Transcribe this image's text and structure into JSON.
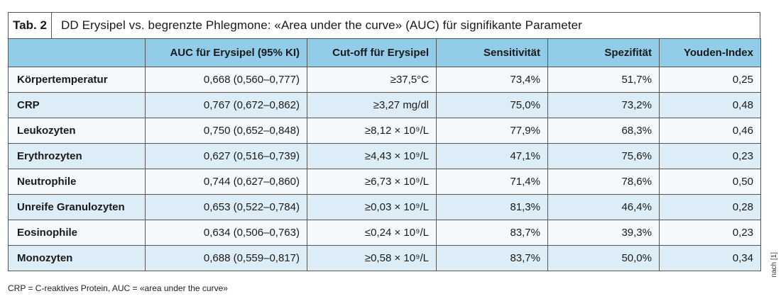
{
  "table": {
    "tab_label": "Tab. 2",
    "title": "DD Erysipel vs. begrenzte Phlegmone: «Area under the curve» (AUC) für signifikante Parameter",
    "headers": [
      "",
      "AUC für Erysipel (95% KI)",
      "Cut-off für Erysipel",
      "Sensitivität",
      "Spezifität",
      "Youden-Index"
    ],
    "rows": [
      {
        "param": "Körpertemperatur",
        "auc": "0,668 (0,560–0,777)",
        "cutoff": "≥37,5°C",
        "sens": "73,4%",
        "spez": "51,7%",
        "youden": "0,25"
      },
      {
        "param": "CRP",
        "auc": "0,767 (0,672–0,862)",
        "cutoff": "≥3,27 mg/dl",
        "sens": "75,0%",
        "spez": "73,2%",
        "youden": "0,48"
      },
      {
        "param": "Leukozyten",
        "auc": "0,750 (0,652–0,848)",
        "cutoff": "≥8,12 × 10⁹/L",
        "sens": "77,9%",
        "spez": "68,3%",
        "youden": "0,46"
      },
      {
        "param": "Erythrozyten",
        "auc": "0,627 (0,516–0,739)",
        "cutoff": "≥4,43 × 10⁹/L",
        "sens": "47,1%",
        "spez": "75,6%",
        "youden": "0,23"
      },
      {
        "param": "Neutrophile",
        "auc": "0,744 (0,627–0,860)",
        "cutoff": "≥6,73 × 10⁹/L",
        "sens": "71,4%",
        "spez": "78,6%",
        "youden": "0,50"
      },
      {
        "param": "Unreife Granulozyten",
        "auc": "0,653 (0,522–0,784)",
        "cutoff": "≥0,03 × 10⁹/L",
        "sens": "81,3%",
        "spez": "46,4%",
        "youden": "0,28"
      },
      {
        "param": "Eosinophile",
        "auc": "0,634 (0,506–0,763)",
        "cutoff": "≤0,24 × 10⁹/L",
        "sens": "83,7%",
        "spez": "39,3%",
        "youden": "0,23"
      },
      {
        "param": "Monozyten",
        "auc": "0,688 (0,559–0,817)",
        "cutoff": "≥0,58 × 10⁹/L",
        "sens": "83,7%",
        "spez": "50,0%",
        "youden": "0,34"
      }
    ]
  },
  "footnote": "CRP = C-reaktives Protein, AUC = «area under the curve»",
  "side_note": "nach [1]",
  "colors": {
    "header_bg": "#91cde8",
    "row_light": "#f3f9fc",
    "row_dark": "#dcedf7"
  }
}
